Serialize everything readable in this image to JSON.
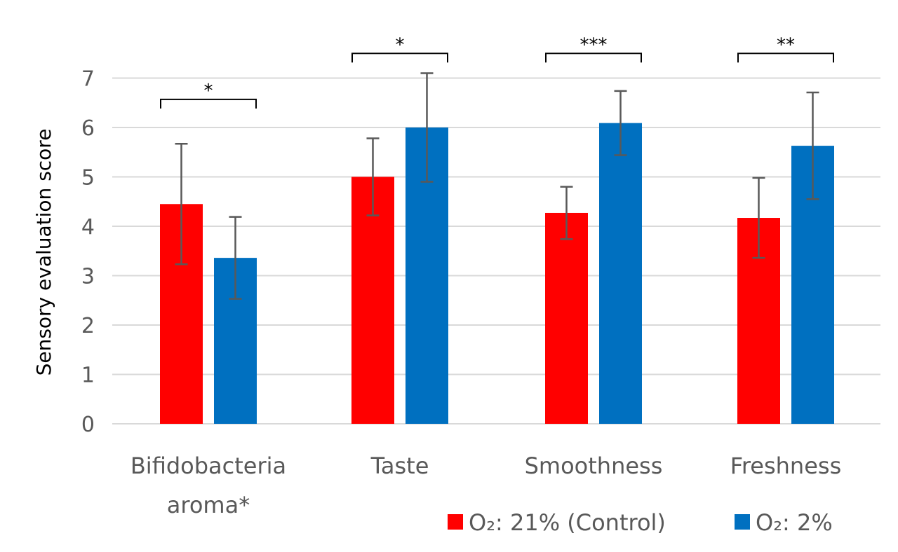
{
  "chart_data": {
    "type": "bar",
    "title": "",
    "xlabel": "",
    "ylabel": "Sensory evaluation score",
    "ylim": [
      0,
      7
    ],
    "yticks": [
      0,
      1,
      2,
      3,
      4,
      5,
      6,
      7
    ],
    "grid": true,
    "categories": [
      [
        "Bifidobacteria",
        "aroma*"
      ],
      [
        "Taste"
      ],
      [
        "Smoothness"
      ],
      [
        "Freshness"
      ]
    ],
    "series": [
      {
        "name": "O₂: 21% (Control)",
        "color": "#ff0000",
        "values": [
          4.45,
          5.0,
          4.27,
          4.17
        ],
        "errors": [
          1.22,
          0.78,
          0.53,
          0.81
        ]
      },
      {
        "name": "O₂: 2%",
        "color": "#0070c0",
        "values": [
          3.36,
          6.0,
          6.09,
          5.63
        ],
        "errors": [
          0.83,
          1.1,
          0.65,
          1.08
        ]
      }
    ],
    "significance": [
      {
        "category": 0,
        "label": "*",
        "level": 6.57
      },
      {
        "category": 1,
        "label": "*",
        "level": 7.5
      },
      {
        "category": 2,
        "label": "***",
        "level": 7.5
      },
      {
        "category": 3,
        "label": "**",
        "level": 7.5
      }
    ],
    "legend_position": "bottom-right"
  }
}
